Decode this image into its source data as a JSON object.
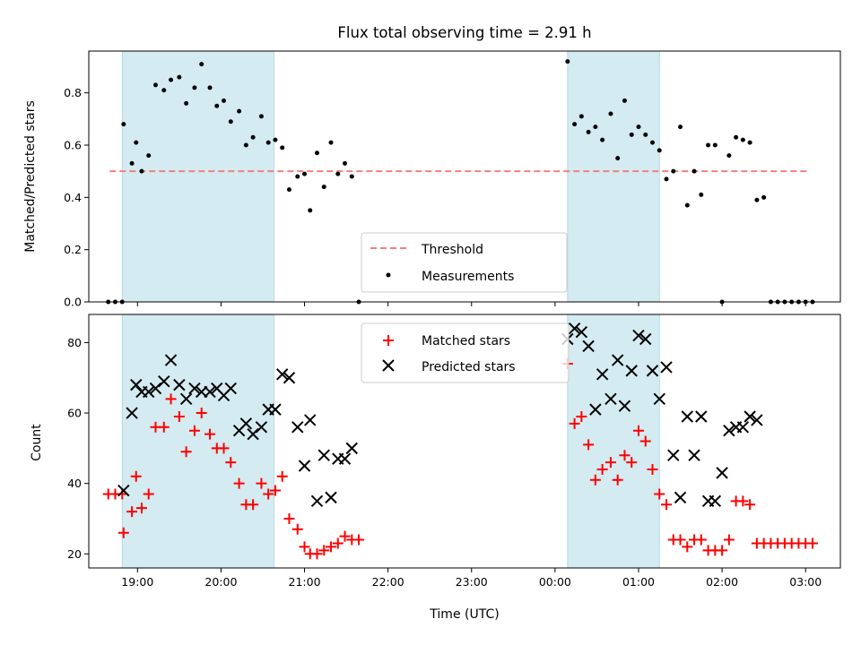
{
  "chart_data": [
    {
      "type": "scatter",
      "title": "Flux total observing time = 2.91 h",
      "xlabel": "",
      "ylabel": "Matched/Predicted stars",
      "xlim": [
        "18:25",
        "03:25"
      ],
      "ylim": [
        0,
        0.96
      ],
      "yticks": [
        "0.0",
        "0.2",
        "0.4",
        "0.6",
        "0.8"
      ],
      "grid": false,
      "legend_position": "lower-center",
      "shaded_intervals": [
        [
          "18:49",
          "20:38"
        ],
        [
          "00:09",
          "01:15"
        ]
      ],
      "shade_color": "#d4ebf1",
      "threshold": {
        "name": "Threshold",
        "y": 0.5,
        "x_range": [
          "18:40",
          "03:01"
        ],
        "color": "#f08080",
        "style": "dashed"
      },
      "series": [
        {
          "name": "Measurements",
          "color": "#000000",
          "marker": "dot",
          "points": [
            [
              "18:39",
              0
            ],
            [
              "18:44",
              0
            ],
            [
              "18:49",
              0
            ],
            [
              "18:50",
              0.68
            ],
            [
              "18:56",
              0.53
            ],
            [
              "18:59",
              0.61
            ],
            [
              "19:03",
              0.5
            ],
            [
              "19:08",
              0.56
            ],
            [
              "19:13",
              0.83
            ],
            [
              "19:19",
              0.81
            ],
            [
              "19:24",
              0.85
            ],
            [
              "19:30",
              0.86
            ],
            [
              "19:35",
              0.76
            ],
            [
              "19:41",
              0.82
            ],
            [
              "19:46",
              0.91
            ],
            [
              "19:52",
              0.82
            ],
            [
              "19:57",
              0.75
            ],
            [
              "20:02",
              0.77
            ],
            [
              "20:07",
              0.69
            ],
            [
              "20:13",
              0.73
            ],
            [
              "20:18",
              0.6
            ],
            [
              "20:23",
              0.63
            ],
            [
              "20:29",
              0.71
            ],
            [
              "20:34",
              0.61
            ],
            [
              "20:39",
              0.62
            ],
            [
              "20:44",
              0.59
            ],
            [
              "20:49",
              0.43
            ],
            [
              "20:55",
              0.48
            ],
            [
              "21:00",
              0.49
            ],
            [
              "21:04",
              0.35
            ],
            [
              "21:09",
              0.57
            ],
            [
              "21:14",
              0.44
            ],
            [
              "21:19",
              0.61
            ],
            [
              "21:24",
              0.49
            ],
            [
              "21:29",
              0.53
            ],
            [
              "21:34",
              0.48
            ],
            [
              "21:39",
              0
            ],
            [
              "00:09",
              0.92
            ],
            [
              "00:14",
              0.68
            ],
            [
              "00:19",
              0.71
            ],
            [
              "00:24",
              0.65
            ],
            [
              "00:29",
              0.67
            ],
            [
              "00:34",
              0.62
            ],
            [
              "00:40",
              0.72
            ],
            [
              "00:45",
              0.55
            ],
            [
              "00:50",
              0.77
            ],
            [
              "00:55",
              0.64
            ],
            [
              "01:00",
              0.67
            ],
            [
              "01:05",
              0.64
            ],
            [
              "01:10",
              0.61
            ],
            [
              "01:15",
              0.58
            ],
            [
              "01:20",
              0.47
            ],
            [
              "01:25",
              0.5
            ],
            [
              "01:30",
              0.67
            ],
            [
              "01:35",
              0.37
            ],
            [
              "01:40",
              0.5
            ],
            [
              "01:45",
              0.41
            ],
            [
              "01:50",
              0.6
            ],
            [
              "01:55",
              0.6
            ],
            [
              "02:00",
              0
            ],
            [
              "02:05",
              0.56
            ],
            [
              "02:10",
              0.63
            ],
            [
              "02:15",
              0.62
            ],
            [
              "02:20",
              0.61
            ],
            [
              "02:25",
              0.39
            ],
            [
              "02:30",
              0.4
            ],
            [
              "02:35",
              0
            ],
            [
              "02:40",
              0
            ],
            [
              "02:45",
              0
            ],
            [
              "02:50",
              0
            ],
            [
              "02:55",
              0
            ],
            [
              "03:00",
              0
            ],
            [
              "03:05",
              0
            ]
          ]
        }
      ]
    },
    {
      "type": "scatter",
      "title": "",
      "xlabel": "Time (UTC)",
      "ylabel": "Count",
      "xlim": [
        "18:25",
        "03:25"
      ],
      "ylim": [
        16,
        88
      ],
      "xticks": [
        "19:00",
        "20:00",
        "21:00",
        "22:00",
        "23:00",
        "00:00",
        "01:00",
        "02:00",
        "03:00"
      ],
      "yticks": [
        "20",
        "40",
        "60",
        "80"
      ],
      "grid": false,
      "legend_position": "upper-center",
      "shaded_intervals": [
        [
          "18:49",
          "20:38"
        ],
        [
          "00:09",
          "01:15"
        ]
      ],
      "series": [
        {
          "name": "Matched stars",
          "color": "#ff0000",
          "marker": "plus",
          "points": [
            [
              "18:39",
              37
            ],
            [
              "18:44",
              37
            ],
            [
              "18:49",
              37
            ],
            [
              "18:50",
              26
            ],
            [
              "18:56",
              32
            ],
            [
              "18:59",
              42
            ],
            [
              "19:03",
              33
            ],
            [
              "19:08",
              37
            ],
            [
              "19:13",
              56
            ],
            [
              "19:19",
              56
            ],
            [
              "19:24",
              64
            ],
            [
              "19:30",
              59
            ],
            [
              "19:35",
              49
            ],
            [
              "19:41",
              55
            ],
            [
              "19:46",
              60
            ],
            [
              "19:52",
              54
            ],
            [
              "19:57",
              50
            ],
            [
              "20:02",
              50
            ],
            [
              "20:07",
              46
            ],
            [
              "20:13",
              40
            ],
            [
              "20:18",
              34
            ],
            [
              "20:23",
              34
            ],
            [
              "20:29",
              40
            ],
            [
              "20:34",
              37
            ],
            [
              "20:39",
              38
            ],
            [
              "20:44",
              42
            ],
            [
              "20:49",
              30
            ],
            [
              "20:55",
              27
            ],
            [
              "21:00",
              22
            ],
            [
              "21:04",
              20
            ],
            [
              "21:09",
              20
            ],
            [
              "21:14",
              21
            ],
            [
              "21:19",
              22
            ],
            [
              "21:24",
              23
            ],
            [
              "21:29",
              25
            ],
            [
              "21:34",
              24
            ],
            [
              "21:39",
              24
            ],
            [
              "00:09",
              74
            ],
            [
              "00:14",
              57
            ],
            [
              "00:19",
              59
            ],
            [
              "00:24",
              51
            ],
            [
              "00:29",
              41
            ],
            [
              "00:34",
              44
            ],
            [
              "00:40",
              46
            ],
            [
              "00:45",
              41
            ],
            [
              "00:50",
              48
            ],
            [
              "00:55",
              46
            ],
            [
              "01:00",
              55
            ],
            [
              "01:05",
              52
            ],
            [
              "01:10",
              44
            ],
            [
              "01:15",
              37
            ],
            [
              "01:20",
              34
            ],
            [
              "01:25",
              24
            ],
            [
              "01:30",
              24
            ],
            [
              "01:35",
              22
            ],
            [
              "01:40",
              24
            ],
            [
              "01:45",
              24
            ],
            [
              "01:50",
              21
            ],
            [
              "01:55",
              21
            ],
            [
              "02:00",
              21
            ],
            [
              "02:05",
              24
            ],
            [
              "02:10",
              35
            ],
            [
              "02:15",
              35
            ],
            [
              "02:20",
              34
            ],
            [
              "02:25",
              23
            ],
            [
              "02:30",
              23
            ],
            [
              "02:35",
              23
            ],
            [
              "02:40",
              23
            ],
            [
              "02:45",
              23
            ],
            [
              "02:50",
              23
            ],
            [
              "02:55",
              23
            ],
            [
              "03:00",
              23
            ],
            [
              "03:05",
              23
            ]
          ]
        },
        {
          "name": "Predicted stars",
          "color": "#000000",
          "marker": "x",
          "points": [
            [
              "18:50",
              38
            ],
            [
              "18:56",
              60
            ],
            [
              "18:59",
              68
            ],
            [
              "19:03",
              66
            ],
            [
              "19:08",
              66
            ],
            [
              "19:13",
              67
            ],
            [
              "19:19",
              69
            ],
            [
              "19:24",
              75
            ],
            [
              "19:30",
              68
            ],
            [
              "19:35",
              64
            ],
            [
              "19:41",
              67
            ],
            [
              "19:46",
              66
            ],
            [
              "19:52",
              66
            ],
            [
              "19:57",
              67
            ],
            [
              "20:02",
              65
            ],
            [
              "20:07",
              67
            ],
            [
              "20:13",
              55
            ],
            [
              "20:18",
              57
            ],
            [
              "20:23",
              54
            ],
            [
              "20:29",
              56
            ],
            [
              "20:34",
              61
            ],
            [
              "20:39",
              61
            ],
            [
              "20:44",
              71
            ],
            [
              "20:49",
              70
            ],
            [
              "20:55",
              56
            ],
            [
              "21:00",
              45
            ],
            [
              "21:04",
              58
            ],
            [
              "21:09",
              35
            ],
            [
              "21:14",
              48
            ],
            [
              "21:19",
              36
            ],
            [
              "21:24",
              47
            ],
            [
              "21:29",
              47
            ],
            [
              "21:34",
              50
            ],
            [
              "00:09",
              81
            ],
            [
              "00:14",
              84
            ],
            [
              "00:19",
              83
            ],
            [
              "00:24",
              79
            ],
            [
              "00:29",
              61
            ],
            [
              "00:34",
              71
            ],
            [
              "00:40",
              64
            ],
            [
              "00:45",
              75
            ],
            [
              "00:50",
              62
            ],
            [
              "00:55",
              72
            ],
            [
              "01:00",
              82
            ],
            [
              "01:05",
              81
            ],
            [
              "01:10",
              72
            ],
            [
              "01:15",
              64
            ],
            [
              "01:20",
              73
            ],
            [
              "01:25",
              48
            ],
            [
              "01:30",
              36
            ],
            [
              "01:35",
              59
            ],
            [
              "01:40",
              48
            ],
            [
              "01:45",
              59
            ],
            [
              "01:50",
              35
            ],
            [
              "01:55",
              35
            ],
            [
              "02:00",
              43
            ],
            [
              "02:05",
              55
            ],
            [
              "02:10",
              56
            ],
            [
              "02:15",
              56
            ],
            [
              "02:20",
              59
            ],
            [
              "02:25",
              58
            ]
          ]
        }
      ]
    }
  ]
}
